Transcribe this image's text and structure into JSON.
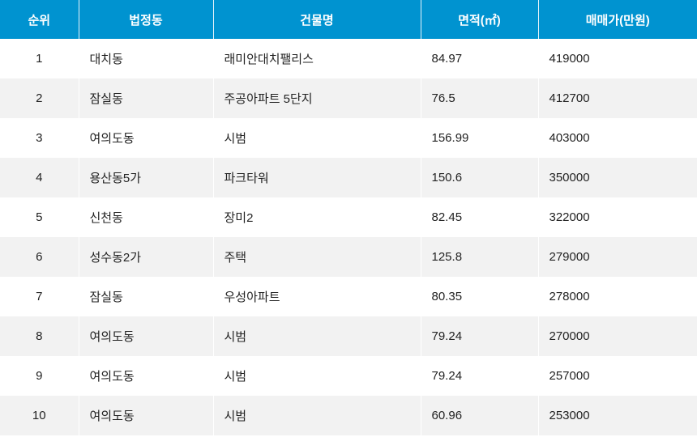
{
  "table": {
    "headers": [
      "순위",
      "법정동",
      "건물명",
      "면적(㎡)",
      "매매가(만원)"
    ],
    "rows": [
      [
        "1",
        "대치동",
        "래미안대치팰리스",
        "84.97",
        "419000"
      ],
      [
        "2",
        "잠실동",
        "주공아파트 5단지",
        "76.5",
        "412700"
      ],
      [
        "3",
        "여의도동",
        "시범",
        "156.99",
        "403000"
      ],
      [
        "4",
        "용산동5가",
        "파크타워",
        "150.6",
        "350000"
      ],
      [
        "5",
        "신천동",
        "장미2",
        "82.45",
        "322000"
      ],
      [
        "6",
        "성수동2가",
        "주택",
        "125.8",
        "279000"
      ],
      [
        "7",
        "잠실동",
        "우성아파트",
        "80.35",
        "278000"
      ],
      [
        "8",
        "여의도동",
        "시범",
        "79.24",
        "270000"
      ],
      [
        "9",
        "여의도동",
        "시범",
        "79.24",
        "257000"
      ],
      [
        "10",
        "여의도동",
        "시범",
        "60.96",
        "253000"
      ]
    ]
  },
  "colors": {
    "header": "#0093d0",
    "alt_row": "#f2f2f2"
  }
}
